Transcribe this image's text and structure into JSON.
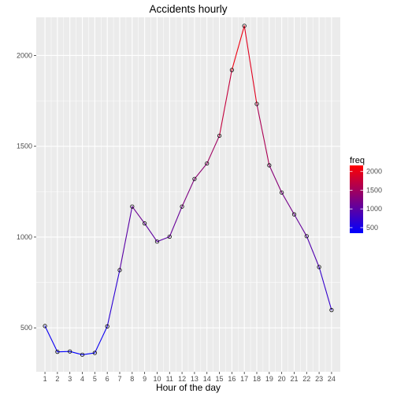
{
  "chart_data": {
    "type": "line",
    "title": "Accidents hourly",
    "xlabel": "Hour of the day",
    "ylabel": "",
    "x": [
      1,
      2,
      3,
      4,
      5,
      6,
      7,
      8,
      9,
      10,
      11,
      12,
      13,
      14,
      15,
      16,
      17,
      18,
      19,
      20,
      21,
      22,
      23,
      24
    ],
    "x_tick_labels": [
      "1",
      "2",
      "3",
      "4",
      "5",
      "6",
      "7",
      "8",
      "9",
      "10",
      "11",
      "12",
      "13",
      "14",
      "15",
      "16",
      "17",
      "18",
      "19",
      "20",
      "21",
      "22",
      "23",
      "24"
    ],
    "values": [
      510,
      368,
      370,
      352,
      362,
      508,
      818,
      1168,
      1075,
      975,
      1002,
      1168,
      1320,
      1405,
      1558,
      1920,
      2163,
      1733,
      1395,
      1245,
      1125,
      1005,
      835,
      598
    ],
    "xlim": [
      0.3,
      24.7
    ],
    "ylim": [
      258,
      2210
    ],
    "y_ticks": [
      500,
      1000,
      1500,
      2000
    ],
    "y_tick_labels": [
      "500",
      "1000",
      "1500",
      "2000"
    ],
    "grid": true,
    "points": true,
    "color_scale": {
      "name": "freq",
      "low_color": "#0000ff",
      "high_color": "#ff0000",
      "range": [
        352,
        2163
      ],
      "breaks": [
        500,
        1000,
        1500,
        2000
      ],
      "break_labels": [
        "500",
        "1000",
        "1500",
        "2000"
      ]
    },
    "panel_background": "#ebebeb",
    "legend_position": "right"
  }
}
